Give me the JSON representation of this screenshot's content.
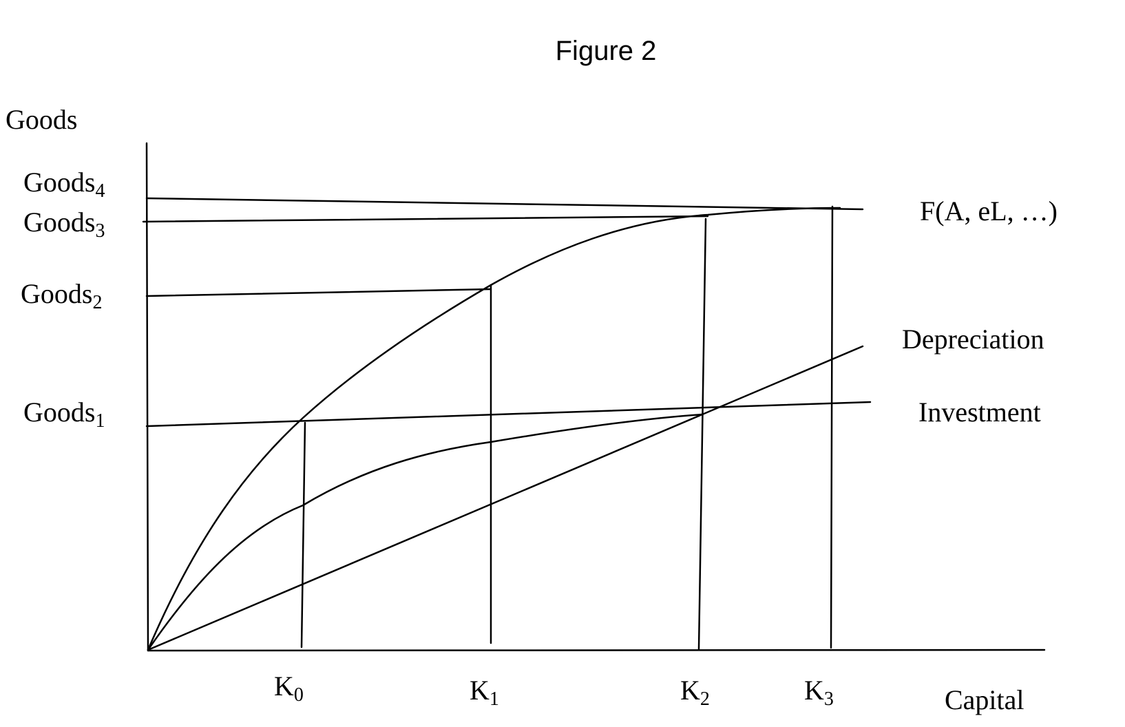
{
  "title": "Figure 2",
  "y_axis_label": "Goods",
  "x_axis_label": "Capital",
  "y_levels": [
    {
      "base": "Goods",
      "sub": "4"
    },
    {
      "base": "Goods",
      "sub": "3"
    },
    {
      "base": "Goods",
      "sub": "2"
    },
    {
      "base": "Goods",
      "sub": "1"
    }
  ],
  "x_levels": [
    {
      "base": "K",
      "sub": "0"
    },
    {
      "base": "K",
      "sub": "1"
    },
    {
      "base": "K",
      "sub": "2"
    },
    {
      "base": "K",
      "sub": "3"
    }
  ],
  "curves": {
    "production": "F(A, eL, …)",
    "depreciation": "Depreciation",
    "investment": "Investment"
  }
}
